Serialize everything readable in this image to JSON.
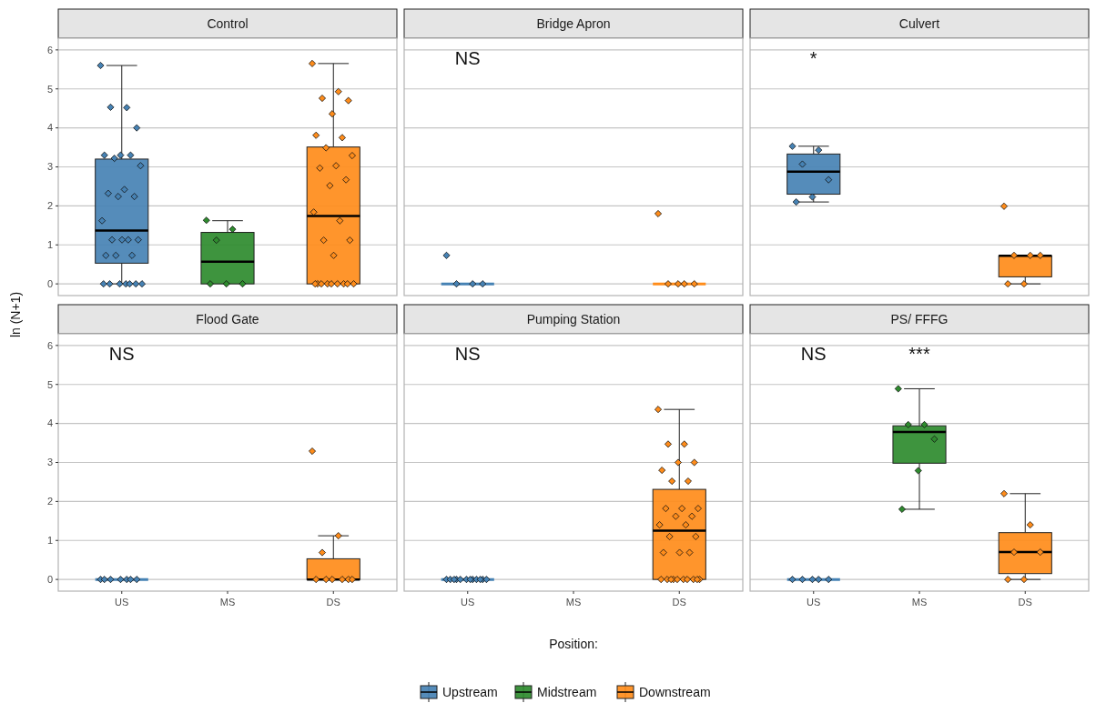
{
  "chart_data": [
    {
      "type": "box",
      "title": "Control",
      "ylabel": "ln (N+1)",
      "categories": [
        "US",
        "MS",
        "DS"
      ],
      "ylim": [
        -0.3,
        6.3
      ],
      "yticks": [
        0,
        1,
        2,
        3,
        4,
        5,
        6
      ],
      "grid": "y",
      "tick_labels": "y",
      "marker": "diamond",
      "series": [
        {
          "color": "#4682b4",
          "boxes": [
            {
              "low": 0,
              "q1": 0.53,
              "median": 1.37,
              "q3": 3.2,
              "high": 5.6
            },
            null,
            null
          ]
        },
        {
          "color": "#2e8b2e",
          "boxes": [
            null,
            {
              "low": 0,
              "q1": 0,
              "median": 0.57,
              "q3": 1.32,
              "high": 1.62
            },
            null
          ]
        },
        {
          "color": "#ff8c1a",
          "boxes": [
            null,
            null,
            {
              "low": 0,
              "q1": 0,
              "median": 1.74,
              "q3": 3.51,
              "high": 5.65
            }
          ]
        },
        {
          "type": "scatter",
          "color": "#4682b4",
          "x": [
            "US",
            "US",
            "US",
            "US",
            "US",
            "US",
            "US",
            "US",
            "US",
            "US",
            "US",
            "US",
            "US",
            "US",
            "US",
            "US",
            "US",
            "US",
            "US",
            "US",
            "US",
            "US",
            "US",
            "US",
            "US",
            "US",
            "US",
            "US"
          ],
          "values": [
            5.6,
            4.52,
            4.53,
            4.0,
            3.3,
            3.3,
            3.3,
            3.22,
            3.03,
            2.42,
            2.32,
            2.24,
            2.24,
            1.62,
            1.13,
            1.13,
            1.13,
            1.13,
            0.73,
            0.73,
            0.73,
            0,
            0,
            0,
            0,
            0,
            0,
            0
          ]
        },
        {
          "type": "scatter",
          "color": "#2e8b2e",
          "x": [
            "MS",
            "MS",
            "MS",
            "MS",
            "MS",
            "MS"
          ],
          "values": [
            1.63,
            1.4,
            1.12,
            0,
            0,
            0
          ]
        },
        {
          "type": "scatter",
          "color": "#ff8c1a",
          "x": [
            "DS",
            "DS",
            "DS",
            "DS",
            "DS",
            "DS",
            "DS",
            "DS",
            "DS",
            "DS",
            "DS",
            "DS",
            "DS",
            "DS",
            "DS",
            "DS",
            "DS",
            "DS",
            "DS",
            "DS",
            "DS",
            "DS",
            "DS",
            "DS",
            "DS",
            "DS",
            "DS"
          ],
          "values": [
            5.65,
            4.93,
            4.76,
            4.7,
            4.36,
            3.81,
            3.75,
            3.49,
            3.29,
            3.03,
            2.97,
            2.67,
            2.52,
            1.84,
            1.62,
            1.12,
            1.12,
            0.73,
            0,
            0,
            0,
            0,
            0,
            0,
            0,
            0,
            0
          ]
        }
      ]
    },
    {
      "type": "box",
      "title": "Bridge Apron",
      "categories": [
        "US",
        "MS",
        "DS"
      ],
      "ylim": [
        -0.3,
        6.3
      ],
      "yticks": [
        0,
        1,
        2,
        3,
        4,
        5,
        6
      ],
      "grid": "y",
      "tick_labels": false,
      "marker": "diamond",
      "annotations": [
        "NS"
      ],
      "series": [
        {
          "color": "#4682b4",
          "boxes": [
            {
              "low": 0,
              "q1": 0,
              "median": 0,
              "q3": 0,
              "high": 0
            },
            null,
            null
          ]
        },
        {
          "color": "#ff8c1a",
          "boxes": [
            null,
            null,
            {
              "low": 0,
              "q1": 0,
              "median": 0,
              "q3": 0,
              "high": 0
            }
          ]
        },
        {
          "type": "scatter",
          "color": "#4682b4",
          "x": [
            "US",
            "US",
            "US",
            "US"
          ],
          "values": [
            0.73,
            0,
            0,
            0
          ]
        },
        {
          "type": "scatter",
          "color": "#ff8c1a",
          "x": [
            "DS",
            "DS",
            "DS",
            "DS",
            "DS"
          ],
          "values": [
            1.8,
            0,
            0,
            0,
            0
          ]
        }
      ]
    },
    {
      "type": "box",
      "title": "Culvert",
      "categories": [
        "US",
        "MS",
        "DS"
      ],
      "ylim": [
        -0.3,
        6.3
      ],
      "yticks": [
        0,
        1,
        2,
        3,
        4,
        5,
        6
      ],
      "grid": "y",
      "tick_labels": false,
      "marker": "diamond",
      "annotations": [
        "*"
      ],
      "series": [
        {
          "color": "#4682b4",
          "boxes": [
            {
              "low": 2.1,
              "q1": 2.3,
              "median": 2.88,
              "q3": 3.33,
              "high": 3.53
            },
            null,
            null
          ]
        },
        {
          "color": "#ff8c1a",
          "boxes": [
            null,
            null,
            {
              "low": 0,
              "q1": 0.18,
              "median": 0.72,
              "q3": 0.72,
              "high": 0.72
            }
          ]
        },
        {
          "type": "scatter",
          "color": "#4682b4",
          "x": [
            "US",
            "US",
            "US",
            "US",
            "US",
            "US"
          ],
          "values": [
            3.53,
            3.43,
            3.07,
            2.67,
            2.23,
            2.1
          ]
        },
        {
          "type": "scatter",
          "color": "#ff8c1a",
          "x": [
            "DS",
            "DS",
            "DS",
            "DS",
            "DS",
            "DS"
          ],
          "values": [
            1.99,
            0.73,
            0.73,
            0.73,
            0,
            0
          ]
        }
      ]
    },
    {
      "type": "box",
      "title": "Flood Gate",
      "categories": [
        "US",
        "MS",
        "DS"
      ],
      "ylim": [
        -0.3,
        6.3
      ],
      "yticks": [
        0,
        1,
        2,
        3,
        4,
        5,
        6
      ],
      "grid": "y",
      "marker": "diamond",
      "annotations": [
        "NS"
      ],
      "series": [
        {
          "color": "#4682b4",
          "boxes": [
            {
              "low": 0,
              "q1": 0,
              "median": 0,
              "q3": 0,
              "high": 0
            },
            null,
            null
          ]
        },
        {
          "color": "#ff8c1a",
          "boxes": [
            null,
            null,
            {
              "low": 0,
              "q1": 0,
              "median": 0,
              "q3": 0.53,
              "high": 1.12
            }
          ]
        },
        {
          "type": "scatter",
          "color": "#4682b4",
          "x": [
            "US",
            "US",
            "US",
            "US",
            "US",
            "US",
            "US"
          ],
          "values": [
            0,
            0,
            0,
            0,
            0,
            0,
            0
          ]
        },
        {
          "type": "scatter",
          "color": "#ff8c1a",
          "x": [
            "DS",
            "DS",
            "DS",
            "DS",
            "DS",
            "DS",
            "DS",
            "DS",
            "DS"
          ],
          "values": [
            3.29,
            1.12,
            0.69,
            0,
            0,
            0,
            0,
            0,
            0
          ]
        }
      ]
    },
    {
      "type": "box",
      "title": "Pumping Station",
      "xlabel": "Position:",
      "categories": [
        "US",
        "MS",
        "DS"
      ],
      "ylim": [
        -0.3,
        6.3
      ],
      "yticks": [
        0,
        1,
        2,
        3,
        4,
        5,
        6
      ],
      "grid": "y",
      "tick_labels": "x",
      "marker": "diamond",
      "annotations": [
        "NS"
      ],
      "series": [
        {
          "color": "#4682b4",
          "boxes": [
            {
              "low": 0,
              "q1": 0,
              "median": 0,
              "q3": 0,
              "high": 0
            },
            null,
            null
          ]
        },
        {
          "color": "#ff8c1a",
          "boxes": [
            null,
            null,
            {
              "low": 0,
              "q1": 0,
              "median": 1.25,
              "q3": 2.31,
              "high": 4.36
            }
          ]
        },
        {
          "type": "scatter",
          "color": "#4682b4",
          "x": [
            "US",
            "US",
            "US",
            "US",
            "US",
            "US",
            "US",
            "US",
            "US",
            "US",
            "US",
            "US"
          ],
          "values": [
            0,
            0,
            0,
            0,
            0,
            0,
            0,
            0,
            0,
            0,
            0,
            0
          ]
        },
        {
          "type": "scatter",
          "color": "#ff8c1a",
          "x": [
            "DS",
            "DS",
            "DS",
            "DS",
            "DS",
            "DS",
            "DS",
            "DS",
            "DS",
            "DS",
            "DS",
            "DS",
            "DS",
            "DS",
            "DS",
            "DS",
            "DS",
            "DS",
            "DS",
            "DS",
            "DS",
            "DS",
            "DS",
            "DS",
            "DS",
            "DS",
            "DS",
            "DS",
            "DS",
            "DS"
          ],
          "values": [
            4.36,
            3.47,
            3.47,
            3.0,
            3.0,
            2.8,
            2.52,
            2.52,
            1.82,
            1.82,
            1.82,
            1.62,
            1.62,
            1.4,
            1.4,
            1.1,
            1.1,
            0.69,
            0.69,
            0.69,
            0,
            0,
            0,
            0,
            0,
            0,
            0,
            0,
            0,
            0
          ]
        }
      ]
    },
    {
      "type": "box",
      "title": "PS/ FFFG",
      "categories": [
        "US",
        "MS",
        "DS"
      ],
      "ylim": [
        -0.3,
        6.3
      ],
      "yticks": [
        0,
        1,
        2,
        3,
        4,
        5,
        6
      ],
      "grid": "y",
      "tick_labels": "x",
      "marker": "diamond",
      "legend": "bottom",
      "annotations": [
        "NS",
        "***"
      ],
      "series": [
        {
          "name": "Upstream",
          "color": "#4682b4",
          "boxes": [
            {
              "low": 0,
              "q1": 0,
              "median": 0,
              "q3": 0,
              "high": 0
            },
            null,
            null
          ]
        },
        {
          "name": "Midstream",
          "color": "#2e8b2e",
          "boxes": [
            null,
            {
              "low": 1.8,
              "q1": 2.98,
              "median": 3.78,
              "q3": 3.94,
              "high": 4.89
            },
            null
          ]
        },
        {
          "name": "Downstream",
          "color": "#ff8c1a",
          "boxes": [
            null,
            null,
            {
              "low": 0,
              "q1": 0.15,
              "median": 0.7,
              "q3": 1.2,
              "high": 2.2
            }
          ]
        },
        {
          "type": "scatter",
          "color": "#4682b4",
          "x": [
            "US",
            "US",
            "US",
            "US",
            "US"
          ],
          "values": [
            0,
            0,
            0,
            0,
            0
          ]
        },
        {
          "type": "scatter",
          "color": "#2e8b2e",
          "x": [
            "MS",
            "MS",
            "MS",
            "MS",
            "MS",
            "MS"
          ],
          "values": [
            4.89,
            3.97,
            3.97,
            3.6,
            2.79,
            1.8
          ]
        },
        {
          "type": "scatter",
          "color": "#ff8c1a",
          "x": [
            "DS",
            "DS",
            "DS",
            "DS",
            "DS",
            "DS"
          ],
          "values": [
            2.2,
            1.4,
            0.7,
            0.7,
            0,
            0
          ]
        }
      ]
    }
  ]
}
